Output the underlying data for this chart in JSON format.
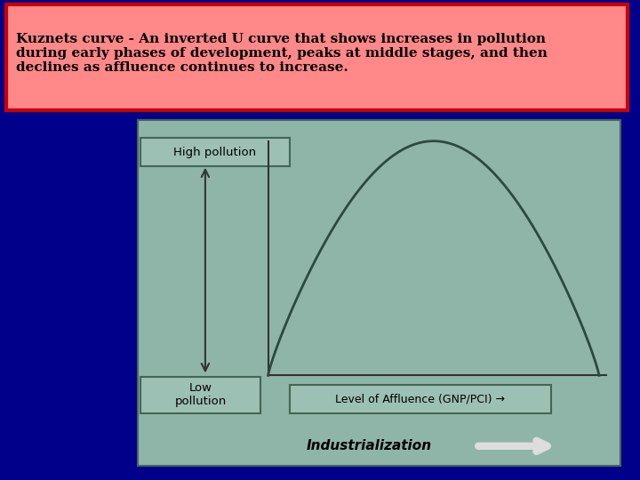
{
  "title_text": "Kuznets curve - An inverted U curve that shows increases in pollution\nduring early phases of development, peaks at middle stages, and then\ndeclines as affluence continues to increase.",
  "title_bg": "#ff8888",
  "title_border": "#cc0000",
  "outer_bg": "#00008b",
  "chart_bg": "#8fb5a8",
  "chart_border": "#446655",
  "curve_color": "#2a4a40",
  "axis_color": "#333333",
  "box_bg": "#9dc0b4",
  "box_border": "#446655",
  "high_pollution_label": "High pollution",
  "low_pollution_label": "Low\npollution",
  "x_label": "Level of Affluence (GNP/PCI) →",
  "industrialization_label": "Industrialization",
  "arrow_color": "#dddddd",
  "label_fontsize": 10,
  "title_fontsize": 11
}
